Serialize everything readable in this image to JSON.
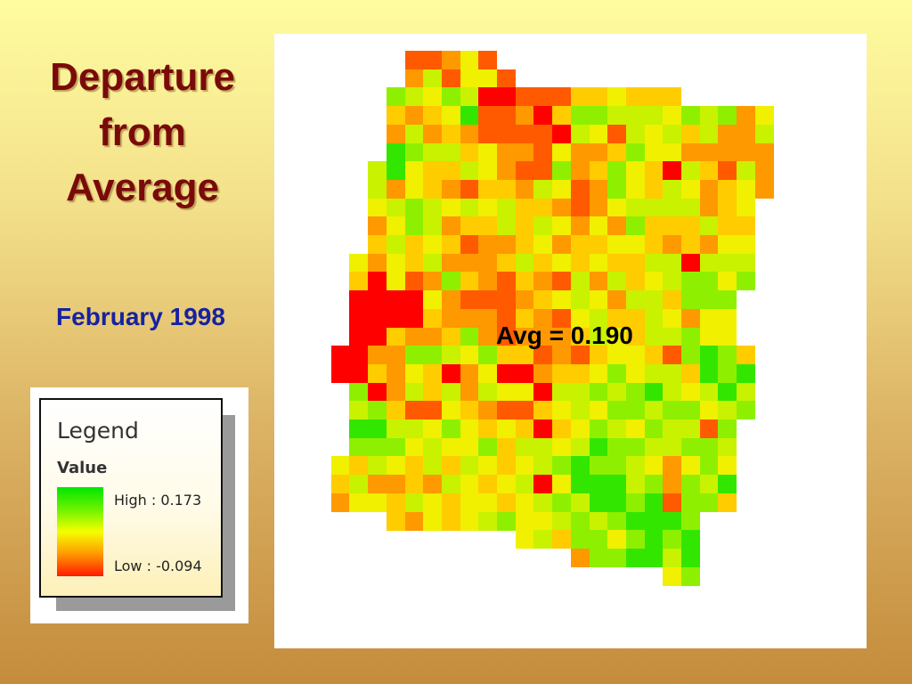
{
  "title_lines": [
    "Departure",
    "from",
    "Average"
  ],
  "subtitle": "February 1998",
  "legend": {
    "heading": "Legend",
    "field": "Value",
    "high_label": "High : 0.173",
    "low_label": "Low : -0.094",
    "colors": [
      "#00e600",
      "#6df200",
      "#f5ff00",
      "#ff9900",
      "#ff1a00"
    ]
  },
  "map": {
    "avg_label": "Avg = 0.190",
    "palette": [
      "#ff0000",
      "#ff5a00",
      "#ff9900",
      "#ffcc00",
      "#f0f000",
      "#c8f200",
      "#8ef000",
      "#33e600"
    ],
    "grid": [
      [
        "",
        "",
        "",
        "",
        "",
        "1",
        "1",
        "2",
        "4",
        "1",
        "",
        "",
        "",
        "",
        "",
        "",
        "",
        "",
        "",
        "",
        "",
        "",
        "",
        "",
        "",
        ""
      ],
      [
        "",
        "",
        "",
        "",
        "",
        "2",
        "5",
        "1",
        "4",
        "4",
        "1",
        "",
        "",
        "",
        "",
        "",
        "",
        "",
        "",
        "",
        "",
        "",
        "",
        "",
        "",
        ""
      ],
      [
        "",
        "",
        "",
        "",
        "6",
        "5",
        "4",
        "6",
        "5",
        "0",
        "0",
        "1",
        "1",
        "1",
        "3",
        "3",
        "4",
        "3",
        "3",
        "3",
        "",
        "",
        "",
        "",
        "",
        ""
      ],
      [
        "",
        "",
        "",
        "",
        "3",
        "2",
        "3",
        "4",
        "7",
        "1",
        "1",
        "2",
        "0",
        "3",
        "6",
        "6",
        "5",
        "5",
        "5",
        "4",
        "6",
        "5",
        "6",
        "2",
        "4",
        ""
      ],
      [
        "",
        "",
        "",
        "",
        "2",
        "5",
        "2",
        "3",
        "2",
        "1",
        "1",
        "1",
        "1",
        "0",
        "5",
        "4",
        "1",
        "5",
        "4",
        "5",
        "3",
        "5",
        "2",
        "2",
        "5",
        ""
      ],
      [
        "",
        "",
        "",
        "",
        "7",
        "6",
        "5",
        "5",
        "3",
        "4",
        "2",
        "2",
        "1",
        "4",
        "2",
        "2",
        "3",
        "6",
        "4",
        "4",
        "2",
        "2",
        "2",
        "2",
        "2",
        ""
      ],
      [
        "",
        "",
        "",
        "5",
        "7",
        "4",
        "3",
        "3",
        "5",
        "4",
        "2",
        "1",
        "1",
        "6",
        "2",
        "3",
        "6",
        "4",
        "3",
        "0",
        "5",
        "3",
        "1",
        "5",
        "2",
        ""
      ],
      [
        "",
        "",
        "",
        "5",
        "2",
        "4",
        "3",
        "2",
        "1",
        "3",
        "3",
        "2",
        "5",
        "4",
        "1",
        "2",
        "6",
        "4",
        "3",
        "5",
        "4",
        "2",
        "3",
        "4",
        "2",
        ""
      ],
      [
        "",
        "",
        "",
        "4",
        "5",
        "6",
        "5",
        "4",
        "5",
        "4",
        "5",
        "3",
        "3",
        "2",
        "1",
        "2",
        "4",
        "5",
        "5",
        "5",
        "5",
        "2",
        "3",
        "4",
        "",
        ""
      ],
      [
        "",
        "",
        "",
        "2",
        "4",
        "6",
        "5",
        "2",
        "3",
        "3",
        "5",
        "3",
        "5",
        "4",
        "2",
        "4",
        "2",
        "6",
        "3",
        "3",
        "3",
        "5",
        "3",
        "3",
        "",
        ""
      ],
      [
        "",
        "",
        "",
        "3",
        "5",
        "3",
        "4",
        "3",
        "1",
        "2",
        "2",
        "3",
        "4",
        "2",
        "3",
        "3",
        "4",
        "4",
        "3",
        "2",
        "3",
        "2",
        "4",
        "4",
        "",
        ""
      ],
      [
        "",
        "",
        "4",
        "2",
        "4",
        "3",
        "5",
        "2",
        "2",
        "2",
        "3",
        "5",
        "3",
        "4",
        "3",
        "4",
        "3",
        "3",
        "5",
        "5",
        "0",
        "5",
        "5",
        "5",
        "",
        ""
      ],
      [
        "",
        "",
        "3",
        "0",
        "4",
        "1",
        "2",
        "6",
        "3",
        "2",
        "1",
        "3",
        "2",
        "1",
        "5",
        "2",
        "5",
        "3",
        "4",
        "5",
        "6",
        "6",
        "4",
        "6",
        "",
        ""
      ],
      [
        "",
        "",
        "0",
        "0",
        "0",
        "0",
        "4",
        "2",
        "1",
        "1",
        "1",
        "2",
        "3",
        "4",
        "5",
        "4",
        "2",
        "5",
        "5",
        "3",
        "6",
        "6",
        "6",
        "",
        "",
        ""
      ],
      [
        "",
        "",
        "0",
        "0",
        "0",
        "0",
        "3",
        "2",
        "2",
        "2",
        "1",
        "3",
        "2",
        "1",
        "4",
        "5",
        "3",
        "3",
        "5",
        "4",
        "2",
        "4",
        "4",
        "",
        "",
        ""
      ],
      [
        "",
        "",
        "0",
        "0",
        "3",
        "2",
        "2",
        "3",
        "6",
        "2",
        "1",
        "2",
        "2",
        "2",
        "3",
        "5",
        "4",
        "3",
        "5",
        "5",
        "6",
        "4",
        "4",
        "",
        "",
        ""
      ],
      [
        "",
        "0",
        "0",
        "2",
        "2",
        "6",
        "6",
        "5",
        "4",
        "6",
        "3",
        "3",
        "1",
        "2",
        "1",
        "3",
        "4",
        "4",
        "3",
        "1",
        "6",
        "7",
        "6",
        "3",
        "",
        ""
      ],
      [
        "",
        "0",
        "0",
        "3",
        "2",
        "4",
        "3",
        "0",
        "2",
        "4",
        "0",
        "0",
        "2",
        "3",
        "3",
        "4",
        "6",
        "4",
        "5",
        "5",
        "3",
        "7",
        "6",
        "7",
        "",
        ""
      ],
      [
        "",
        "",
        "6",
        "0",
        "2",
        "5",
        "3",
        "5",
        "2",
        "5",
        "4",
        "4",
        "0",
        "5",
        "5",
        "6",
        "5",
        "6",
        "7",
        "5",
        "4",
        "5",
        "7",
        "5",
        "",
        ""
      ],
      [
        "",
        "",
        "5",
        "6",
        "3",
        "1",
        "1",
        "4",
        "3",
        "2",
        "1",
        "1",
        "3",
        "4",
        "5",
        "4",
        "6",
        "6",
        "5",
        "6",
        "6",
        "4",
        "5",
        "6",
        "",
        ""
      ],
      [
        "",
        "",
        "7",
        "7",
        "5",
        "5",
        "4",
        "6",
        "4",
        "3",
        "4",
        "3",
        "0",
        "3",
        "4",
        "6",
        "5",
        "4",
        "6",
        "5",
        "5",
        "1",
        "6",
        "",
        "",
        ""
      ],
      [
        "",
        "",
        "6",
        "6",
        "6",
        "4",
        "5",
        "4",
        "4",
        "6",
        "3",
        "5",
        "5",
        "4",
        "5",
        "7",
        "6",
        "6",
        "5",
        "5",
        "6",
        "6",
        "5",
        "",
        "",
        ""
      ],
      [
        "",
        "4",
        "3",
        "5",
        "4",
        "3",
        "5",
        "3",
        "5",
        "4",
        "3",
        "4",
        "5",
        "6",
        "7",
        "6",
        "6",
        "5",
        "4",
        "2",
        "4",
        "6",
        "4",
        "",
        "",
        ""
      ],
      [
        "",
        "3",
        "5",
        "2",
        "2",
        "3",
        "2",
        "5",
        "4",
        "3",
        "4",
        "5",
        "0",
        "4",
        "7",
        "7",
        "7",
        "5",
        "6",
        "2",
        "6",
        "5",
        "7",
        "",
        "",
        ""
      ],
      [
        "",
        "2",
        "4",
        "4",
        "3",
        "5",
        "4",
        "3",
        "4",
        "4",
        "3",
        "4",
        "5",
        "6",
        "5",
        "7",
        "7",
        "6",
        "7",
        "1",
        "6",
        "6",
        "3",
        "",
        "",
        ""
      ],
      [
        "",
        "",
        "",
        "",
        "3",
        "2",
        "4",
        "3",
        "4",
        "5",
        "6",
        "4",
        "4",
        "5",
        "6",
        "5",
        "6",
        "7",
        "7",
        "7",
        "6",
        "",
        "",
        "",
        "",
        ""
      ],
      [
        "",
        "",
        "",
        "",
        "",
        "",
        "",
        "",
        "",
        "",
        "",
        "4",
        "5",
        "3",
        "6",
        "6",
        "4",
        "6",
        "7",
        "6",
        "7",
        "",
        "",
        "",
        "",
        ""
      ],
      [
        "",
        "",
        "",
        "",
        "",
        "",
        "",
        "",
        "",
        "",
        "",
        "",
        "",
        "",
        "2",
        "6",
        "6",
        "7",
        "7",
        "5",
        "7",
        "",
        "",
        "",
        "",
        ""
      ],
      [
        "",
        "",
        "",
        "",
        "",
        "",
        "",
        "",
        "",
        "",
        "",
        "",
        "",
        "",
        "",
        "",
        "",
        "",
        "",
        "4",
        "6",
        "",
        "",
        "",
        "",
        ""
      ]
    ]
  }
}
